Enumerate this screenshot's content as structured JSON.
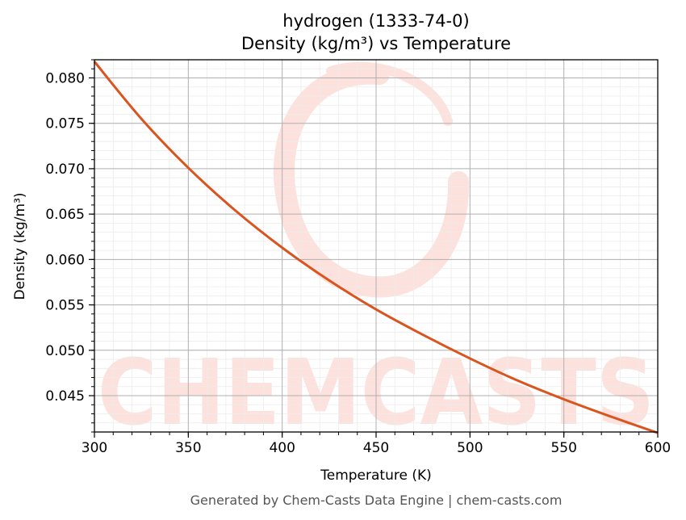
{
  "chart_data": {
    "type": "line",
    "title": "hydrogen (1333-74-0)",
    "subtitle": "Density (kg/m³) vs Temperature",
    "xlabel": "Temperature (K)",
    "ylabel": "Density (kg/m³)",
    "xlim": [
      300,
      600
    ],
    "ylim": [
      0.041,
      0.082
    ],
    "x_ticks": [
      300,
      350,
      400,
      450,
      500,
      550,
      600
    ],
    "x_tick_labels": [
      "300",
      "350",
      "400",
      "450",
      "500",
      "550",
      "600"
    ],
    "y_ticks": [
      0.045,
      0.05,
      0.055,
      0.06,
      0.065,
      0.07,
      0.075,
      0.08
    ],
    "y_tick_labels": [
      "0.045",
      "0.050",
      "0.055",
      "0.060",
      "0.065",
      "0.070",
      "0.075",
      "0.080"
    ],
    "grid": "major and minor",
    "series": [
      {
        "color": "#d9541e",
        "x": [
          300,
          325,
          350,
          375,
          400,
          425,
          450,
          475,
          500,
          525,
          550,
          575,
          600
        ],
        "y": [
          0.0818,
          0.0755,
          0.0701,
          0.0654,
          0.0613,
          0.0577,
          0.0545,
          0.0517,
          0.0491,
          0.0467,
          0.0446,
          0.0427,
          0.0409
        ]
      }
    ]
  },
  "watermark": {
    "text": "CHEMCASTS",
    "color": "#fde1dc"
  },
  "footer": "Generated by Chem-Casts Data Engine | chem-casts.com"
}
